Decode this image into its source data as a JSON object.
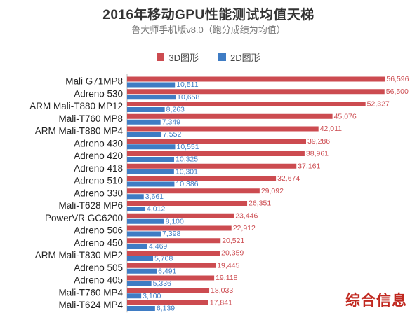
{
  "title": "2016年移动GPU性能测试均值天梯",
  "subtitle": "鲁大师手机版v8.0（跑分成绩为均值）",
  "watermark": "综合信息",
  "chart_data": {
    "type": "bar",
    "orientation": "horizontal",
    "title": "2016年移动GPU性能测试均值天梯",
    "subtitle": "鲁大师手机版v8.0（跑分成绩为均值）",
    "legend_position": "top",
    "grid": false,
    "xlim": [
      0,
      57000
    ],
    "categories": [
      "Mali G71MP8",
      "Adreno 530",
      "ARM Mali-T880 MP12",
      "Mali-T760 MP8",
      "ARM Mali-T880 MP4",
      "Adreno 430",
      "Adreno 420",
      "Adreno 418",
      "Adreno 510",
      "Adreno 330",
      "Mali-T628 MP6",
      "PowerVR GC6200",
      "Adreno 506",
      "Adreno 450",
      "ARM Mali-T830 MP2",
      "Adreno 505",
      "Adreno 405",
      "Mali-T760 MP4",
      "Mali-T624 MP4"
    ],
    "series": [
      {
        "name": "3D图形",
        "color": "#cc4b50",
        "values": [
          56596,
          56500,
          52327,
          45076,
          42011,
          39286,
          38961,
          37161,
          32674,
          29092,
          26351,
          23446,
          22912,
          20521,
          20359,
          19445,
          19118,
          18033,
          17841
        ],
        "labels": [
          "56,596",
          "56,500",
          "52,327",
          "45,076",
          "42,011",
          "39,286",
          "38,961",
          "37,161",
          "32,674",
          "29,092",
          "26,351",
          "23,446",
          "22,912",
          "20,521",
          "20,359",
          "19,445",
          "19,118",
          "18,033",
          "17,841"
        ]
      },
      {
        "name": "2D图形",
        "color": "#3f7cc4",
        "values": [
          10511,
          10658,
          8263,
          7349,
          7552,
          10551,
          10325,
          10301,
          10386,
          3661,
          4012,
          8100,
          7398,
          4469,
          5708,
          6491,
          5336,
          3100,
          6139
        ],
        "labels": [
          "10,511",
          "10,658",
          "8,263",
          "7,349",
          "7,552",
          "10,551",
          "10,325",
          "10,301",
          "10,386",
          "3,661",
          "4,012",
          "8,100",
          "7,398",
          "4,469",
          "5,708",
          "6,491",
          "5,336",
          "3,100",
          "6,139"
        ]
      }
    ]
  }
}
